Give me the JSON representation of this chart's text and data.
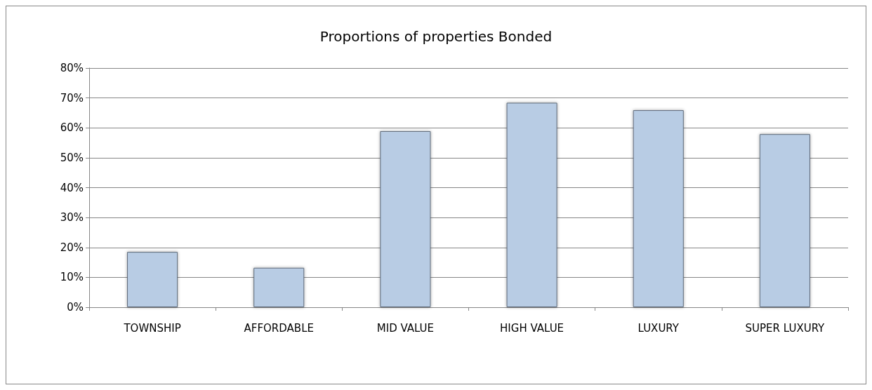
{
  "chart_data": {
    "type": "bar",
    "title": "Proportions of properties Bonded",
    "categories": [
      "TOWNSHIP",
      "AFFORDABLE",
      "MID VALUE",
      "HIGH VALUE",
      "LUXURY",
      "SUPER LUXURY"
    ],
    "values": [
      18.5,
      13.2,
      58.9,
      68.4,
      65.9,
      57.9
    ],
    "color": "#b8cce4",
    "ylim": [
      0,
      80
    ],
    "yticks": [
      {
        "value": 0,
        "label": "0%"
      },
      {
        "value": 10,
        "label": "10%"
      },
      {
        "value": 20,
        "label": "20%"
      },
      {
        "value": 30,
        "label": "30%"
      },
      {
        "value": 40,
        "label": "40%"
      },
      {
        "value": 50,
        "label": "50%"
      },
      {
        "value": 60,
        "label": "60%"
      },
      {
        "value": 70,
        "label": "70%"
      },
      {
        "value": 80,
        "label": "80%"
      }
    ],
    "grid": "y"
  }
}
